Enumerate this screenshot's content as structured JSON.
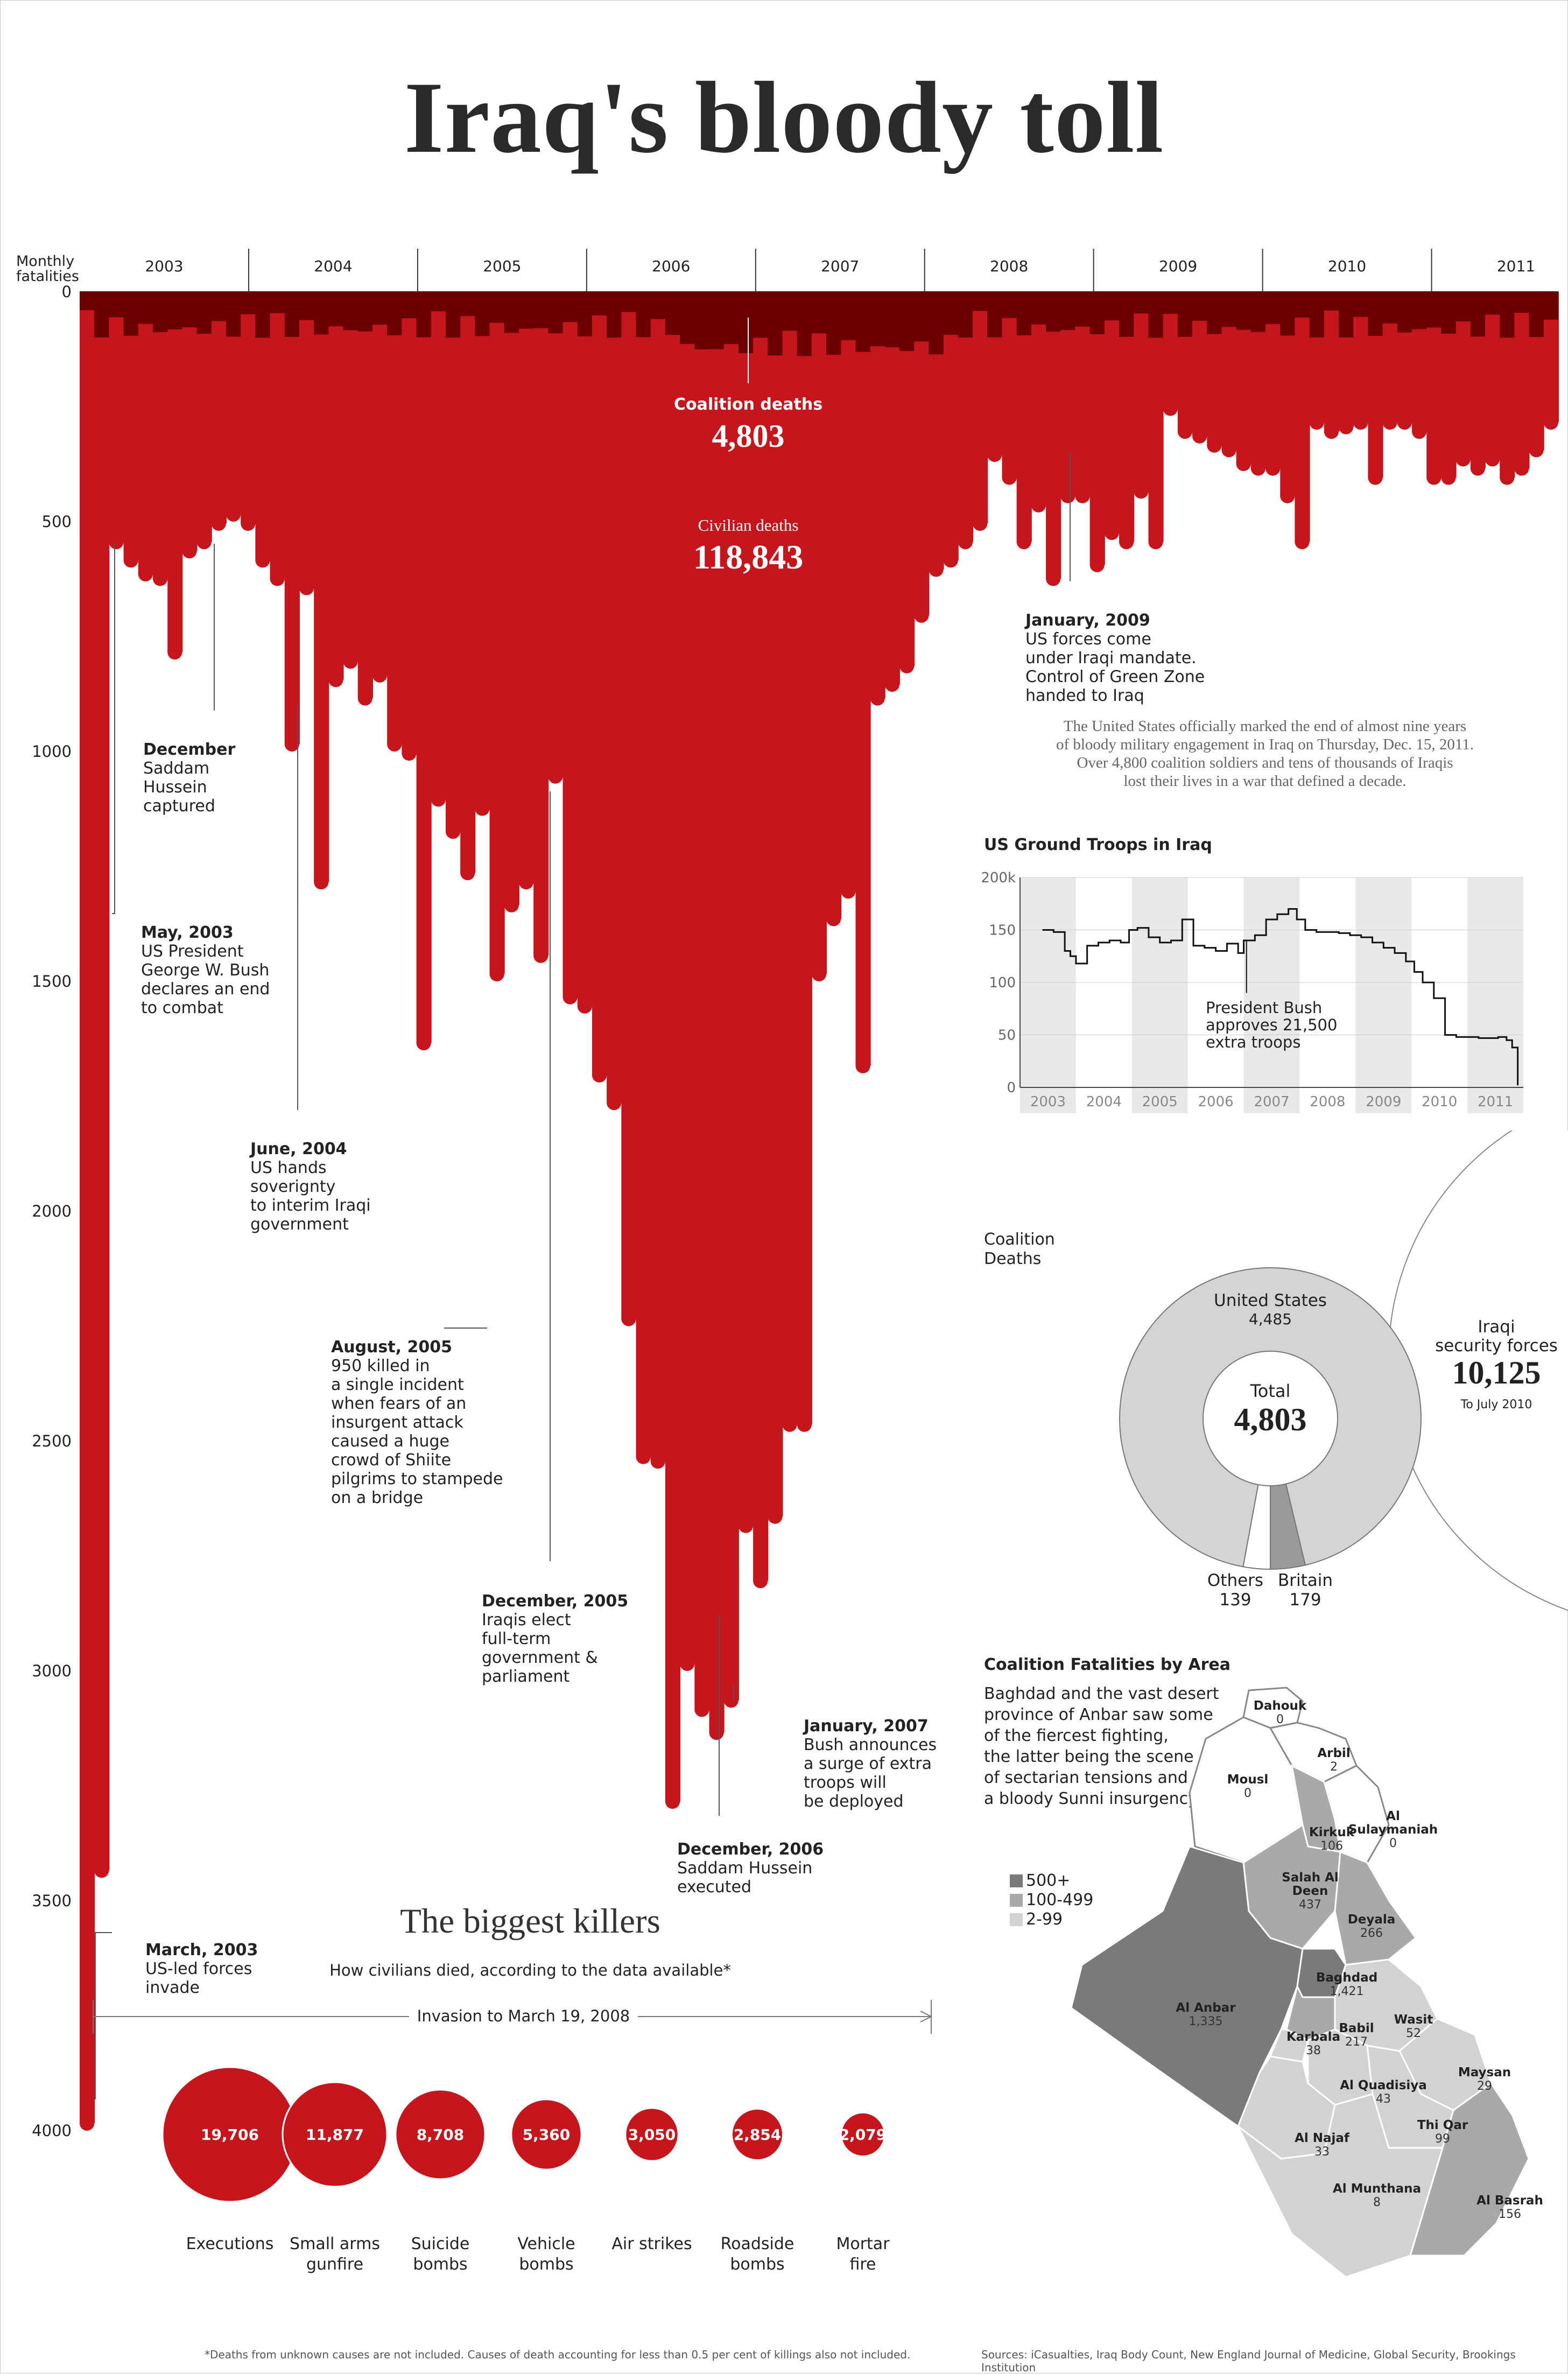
{
  "title": "Iraq's bloody toll",
  "chart_data": [
    {
      "type": "area",
      "ylabel": "Monthly\nfatalities",
      "ylim": [
        0,
        4000
      ],
      "y_ticks": [
        0,
        500,
        1000,
        1500,
        2000,
        2500,
        3000,
        3500,
        4000
      ],
      "x_ticks": [
        "2003",
        "2004",
        "2005",
        "2006",
        "2007",
        "2008",
        "2009",
        "2010",
        "2011"
      ],
      "series": [
        {
          "name": "Civilian deaths",
          "start": "2003-03",
          "values": [
            4000,
            3450,
            560,
            600,
            630,
            640,
            800,
            580,
            560,
            520,
            500,
            520,
            600,
            640,
            1000,
            660,
            1300,
            860,
            820,
            900,
            850,
            1000,
            1020,
            1650,
            1120,
            1190,
            1280,
            1140,
            1500,
            1350,
            1300,
            1460,
            1070,
            1550,
            1570,
            1720,
            1780,
            2250,
            2550,
            2560,
            3300,
            3000,
            3100,
            3150,
            3080,
            2700,
            2820,
            2680,
            2480,
            2480,
            1500,
            1380,
            1320,
            1700,
            900,
            870,
            830,
            720,
            620,
            600,
            560,
            520,
            370,
            420,
            560,
            480,
            640,
            460,
            460,
            610,
            540,
            560,
            450,
            560,
            270,
            320,
            330,
            350,
            360,
            390,
            400,
            400,
            460,
            560,
            300,
            320,
            310,
            300,
            420,
            300,
            300,
            320,
            420,
            420,
            380,
            400,
            380,
            420,
            400,
            360,
            300
          ],
          "values_note_months": [
            "2003-03",
            "2011-11"
          ]
        },
        {
          "name": "Coalition deaths",
          "values_summary": "dark band at top of chart, roughly 30-150 per month"
        }
      ],
      "center_labels": [
        {
          "label": "Coalition deaths",
          "value": "4,803"
        },
        {
          "label": "Civilian deaths",
          "value": "118,843"
        }
      ],
      "annotations": [
        {
          "title": "March, 2003",
          "text": "US-led forces\ninvade"
        },
        {
          "title": "May, 2003",
          "text": "US President\nGeorge W. Bush\ndeclares an end\nto combat"
        },
        {
          "title": "December",
          "text": "Saddam\nHussein\ncaptured"
        },
        {
          "title": "June, 2004",
          "text": "US hands\nsoverignty\nto interim Iraqi\ngovernment"
        },
        {
          "title": "August, 2005",
          "text": "950 killed in\na single incident\nwhen fears of an\ninsurgent attack\ncaused a huge\ncrowd of Shiite\npilgrims to stampede\non a bridge"
        },
        {
          "title": "December, 2005",
          "text": "Iraqis elect\nfull-term\ngovernment &\nparliament"
        },
        {
          "title": "December, 2006",
          "text": "Saddam Hussein\nexecuted"
        },
        {
          "title": "January, 2007",
          "text": "Bush announces\na surge of extra\ntroops will\nbe deployed"
        },
        {
          "title": "January, 2009",
          "text": "US forces come\nunder Iraqi mandate.\nControl of Green Zone\nhanded to Iraq"
        }
      ]
    },
    {
      "type": "line",
      "title": "US Ground Troops in Iraq",
      "y_ticks": [
        "0",
        "50",
        "100",
        "150",
        "200k"
      ],
      "ylim": [
        0,
        200
      ],
      "x_ticks": [
        "2003",
        "2004",
        "2005",
        "2006",
        "2007",
        "2008",
        "2009",
        "2010",
        "2011"
      ],
      "x": [
        2003.4,
        2003.6,
        2003.8,
        2003.9,
        2004.0,
        2004.2,
        2004.4,
        2004.6,
        2004.8,
        2004.95,
        2005.1,
        2005.3,
        2005.5,
        2005.7,
        2005.9,
        2006.1,
        2006.3,
        2006.5,
        2006.7,
        2006.9,
        2007.0,
        2007.2,
        2007.4,
        2007.6,
        2007.8,
        2007.95,
        2008.1,
        2008.3,
        2008.5,
        2008.7,
        2008.9,
        2009.1,
        2009.3,
        2009.5,
        2009.7,
        2009.9,
        2010.05,
        2010.2,
        2010.4,
        2010.6,
        2010.8,
        2011.0,
        2011.2,
        2011.4,
        2011.55,
        2011.7,
        2011.8,
        2011.9
      ],
      "y": [
        150,
        148,
        130,
        125,
        118,
        135,
        138,
        140,
        138,
        150,
        152,
        143,
        138,
        140,
        160,
        135,
        133,
        130,
        137,
        128,
        140,
        145,
        160,
        165,
        170,
        160,
        150,
        148,
        148,
        147,
        145,
        143,
        138,
        133,
        128,
        120,
        110,
        100,
        85,
        50,
        48,
        48,
        47,
        47,
        48,
        45,
        38,
        2
      ],
      "annotation": "President Bush\napproves 21,500\nextra troops"
    },
    {
      "type": "pie",
      "title": "Coalition\nDeaths",
      "center_label": "Total",
      "total": "4,803",
      "slices": [
        {
          "label": "United States",
          "value": 4485,
          "display": "4,485"
        },
        {
          "label": "Britain",
          "value": 179,
          "display": "179"
        },
        {
          "label": "Others",
          "value": 139,
          "display": "139"
        }
      ],
      "comparison": {
        "label": "Iraqi\nsecurity forces",
        "value": "10,125",
        "note": "To July 2010"
      }
    },
    {
      "type": "bar",
      "title": "The biggest killers",
      "subtitle": "How civilians died, according to the data available*",
      "period": "Invasion to March 19, 2008",
      "categories": [
        "Executions",
        "Small arms\ngunfire",
        "Suicide\nbombs",
        "Vehicle\nbombs",
        "Air strikes",
        "Roadside\nbombs",
        "Mortar\nfire"
      ],
      "values": [
        19706,
        11877,
        8708,
        5360,
        3050,
        2854,
        2079
      ],
      "value_labels": [
        "19,706",
        "11,877",
        "8,708",
        "5,360",
        "3,050",
        "2,854",
        "2,079"
      ]
    }
  ],
  "intro_text": "The United States officially marked the end of almost nine years\nof bloody military engagement in Iraq on Thursday, Dec. 15, 2011.\nOver 4,800 coalition soldiers and tens of thousands of Iraqis\nlost their lives in a war that defined a decade.",
  "map": {
    "title": "Coalition Fatalities by Area",
    "description": "Baghdad and the vast desert\nprovince of Anbar saw some\nof the fiercest fighting,\nthe latter being the scene\nof sectarian tensions and\na bloody Sunni insurgency.",
    "legend": [
      {
        "label": "500+",
        "color": "#7a7a7a"
      },
      {
        "label": "100-499",
        "color": "#a9a9a9"
      },
      {
        "label": "2-99",
        "color": "#d2d2d2"
      }
    ],
    "regions": [
      {
        "name": "Dahouk",
        "value": "0"
      },
      {
        "name": "Arbil",
        "value": "2"
      },
      {
        "name": "Mousl",
        "value": "0"
      },
      {
        "name": "Al Sulaymaniah",
        "value": "0"
      },
      {
        "name": "Kirkuk",
        "value": "106"
      },
      {
        "name": "Salah Al Deen",
        "value": "437"
      },
      {
        "name": "Deyala",
        "value": "266"
      },
      {
        "name": "Baghdad",
        "value": "1,421"
      },
      {
        "name": "Al Anbar",
        "value": "1,335"
      },
      {
        "name": "Babil",
        "value": "217"
      },
      {
        "name": "Karbala",
        "value": "38"
      },
      {
        "name": "Wasit",
        "value": "52"
      },
      {
        "name": "Al Quadisiya",
        "value": "43"
      },
      {
        "name": "Maysan",
        "value": "29"
      },
      {
        "name": "Al Najaf",
        "value": "33"
      },
      {
        "name": "Thi Qar",
        "value": "99"
      },
      {
        "name": "Al Munthana",
        "value": "8"
      },
      {
        "name": "Al Basrah",
        "value": "156"
      }
    ]
  },
  "footnote": "*Deaths from unknown causes are not included. Causes of death accounting for less than 0.5 per cent of killings also not included.",
  "sources": "Sources: iCasualties, Iraq Body Count, New England Journal of Medicine, Global Security, Brookings Institution",
  "colors": {
    "civilian": "#c4161c",
    "coalition": "#6b0000",
    "bubble": "#c4161c"
  }
}
